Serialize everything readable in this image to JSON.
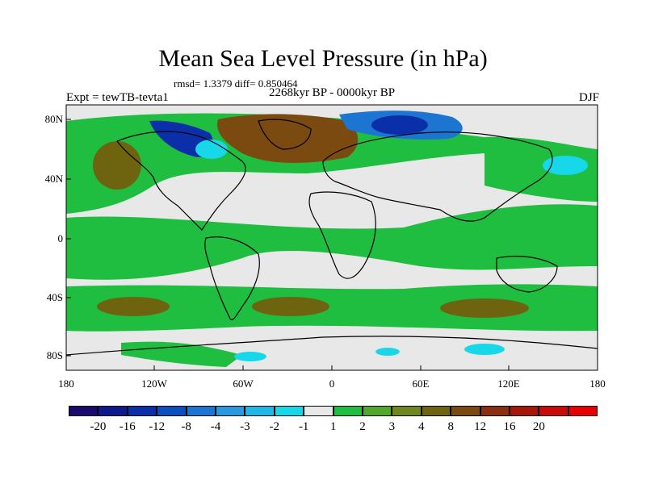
{
  "header": {
    "title": "Mean Sea Level Pressure (in hPa)",
    "stats": "rmsd= 1.3379 diff= 0.850464",
    "period": "2268kyr BP - 0000kyr BP",
    "experiment": "Expt = tewTB-tevta1",
    "season": "DJF"
  },
  "axes": {
    "y_ticks": [
      "80N",
      "40N",
      "0",
      "40S",
      "80S"
    ],
    "x_ticks": [
      "180",
      "120W",
      "60W",
      "0",
      "60E",
      "120E",
      "180"
    ]
  },
  "colorbar": {
    "colors": [
      "#1a0a6e",
      "#0e1a8c",
      "#0a2fa8",
      "#0a50be",
      "#1b75d1",
      "#2a98df",
      "#1fb8e6",
      "#16d8e8",
      "#e8e8e8",
      "#1fbd40",
      "#50a82c",
      "#6e8720",
      "#6e6410",
      "#7a4a10",
      "#8a3010",
      "#a51808",
      "#c80a08",
      "#e60000"
    ],
    "labels": [
      "-20",
      "-16",
      "-12",
      "-8",
      "-4",
      "-3",
      "-2",
      "-1",
      "1",
      "2",
      "3",
      "4",
      "8",
      "12",
      "16",
      "20"
    ]
  },
  "palette": {
    "background": "#e8e8e8",
    "green": "#1fbd40",
    "olive": "#6e6410",
    "brown": "#7a4a10",
    "blue_dark": "#0a2fa8",
    "blue_mid": "#1b75d1",
    "cyan": "#16d8e8"
  }
}
